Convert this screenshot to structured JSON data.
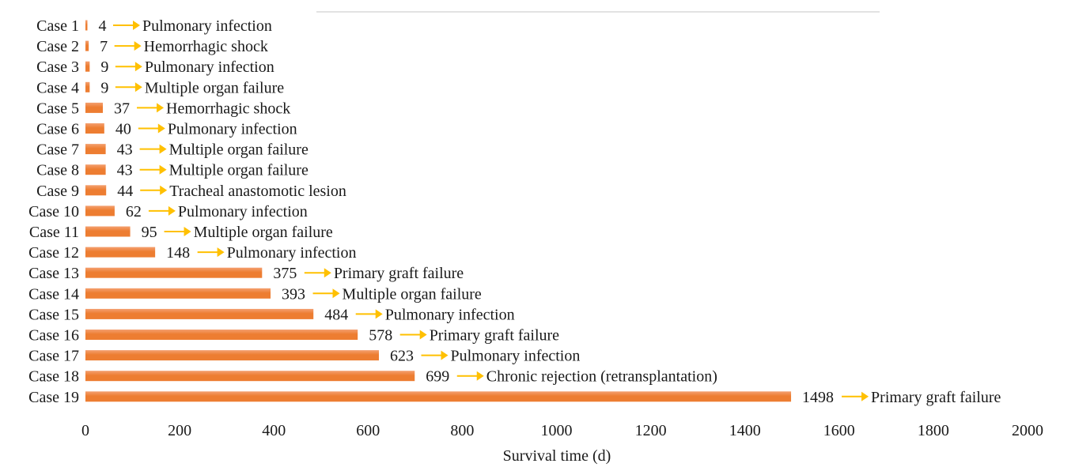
{
  "chart_data": {
    "type": "bar",
    "orientation": "horizontal",
    "categories": [
      "Case 1",
      "Case 2",
      "Case 3",
      "Case 4",
      "Case 5",
      "Case 6",
      "Case 7",
      "Case 8",
      "Case 9",
      "Case 10",
      "Case 11",
      "Case 12",
      "Case 13",
      "Case 14",
      "Case 15",
      "Case 16",
      "Case 17",
      "Case 18",
      "Case 19"
    ],
    "values": [
      4,
      7,
      9,
      9,
      37,
      40,
      43,
      43,
      44,
      62,
      95,
      148,
      375,
      393,
      484,
      578,
      623,
      699,
      1498
    ],
    "annotations": [
      "Pulmonary infection",
      "Hemorrhagic shock",
      "Pulmonary infection",
      "Multiple organ failure",
      "Hemorrhagic shock",
      "Pulmonary infection",
      "Multiple organ failure",
      "Multiple organ failure",
      "Tracheal anastomotic lesion",
      "Pulmonary infection",
      "Multiple organ failure",
      "Pulmonary infection",
      "Primary graft failure",
      "Multiple organ failure",
      "Pulmonary infection",
      "Primary graft failure",
      "Pulmonary infection",
      "Chronic rejection (retransplantation)",
      "Primary graft failure"
    ],
    "xlabel": "Survival time (d)",
    "ylabel": "",
    "xlim": [
      0,
      2000
    ],
    "xticks": [
      "0",
      "200",
      "400",
      "600",
      "800",
      "1000",
      "1200",
      "1400",
      "1600",
      "1800",
      "2000"
    ],
    "grid": false,
    "colors": {
      "bar": "#ED7D31",
      "bar_highlight": "#F4A070",
      "arrow": "#FFC000",
      "axis_line": "#D9D9D9",
      "text": "#1a1a1a"
    }
  }
}
